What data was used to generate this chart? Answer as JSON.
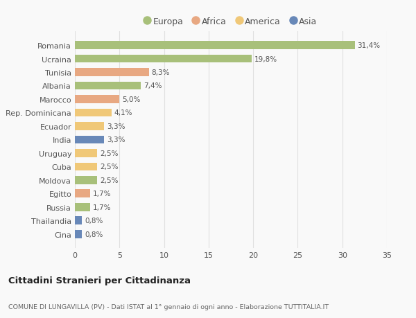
{
  "categories": [
    "Romania",
    "Ucraina",
    "Tunisia",
    "Albania",
    "Marocco",
    "Rep. Dominicana",
    "Ecuador",
    "India",
    "Uruguay",
    "Cuba",
    "Moldova",
    "Egitto",
    "Russia",
    "Thailandia",
    "Cina"
  ],
  "values": [
    31.4,
    19.8,
    8.3,
    7.4,
    5.0,
    4.1,
    3.3,
    3.3,
    2.5,
    2.5,
    2.5,
    1.7,
    1.7,
    0.8,
    0.8
  ],
  "labels": [
    "31,4%",
    "19,8%",
    "8,3%",
    "7,4%",
    "5,0%",
    "4,1%",
    "3,3%",
    "3,3%",
    "2,5%",
    "2,5%",
    "2,5%",
    "1,7%",
    "1,7%",
    "0,8%",
    "0,8%"
  ],
  "bar_colors": [
    "#a8c07a",
    "#a8c07a",
    "#e8a882",
    "#a8c07a",
    "#e8a882",
    "#f0c878",
    "#f0c878",
    "#6888b8",
    "#f0c878",
    "#f0c878",
    "#a8c07a",
    "#e8a882",
    "#a8c07a",
    "#6888b8",
    "#6888b8"
  ],
  "legend_labels": [
    "Europa",
    "Africa",
    "America",
    "Asia"
  ],
  "legend_colors": [
    "#a8c07a",
    "#e8a882",
    "#f0c878",
    "#6888b8"
  ],
  "title": "Cittadini Stranieri per Cittadinanza",
  "subtitle": "COMUNE DI LUNGAVILLA (PV) - Dati ISTAT al 1° gennaio di ogni anno - Elaborazione TUTTITALIA.IT",
  "xlim": [
    0,
    35
  ],
  "xticks": [
    0,
    5,
    10,
    15,
    20,
    25,
    30,
    35
  ],
  "background_color": "#f9f9f9",
  "grid_color": "#e0e0e0"
}
